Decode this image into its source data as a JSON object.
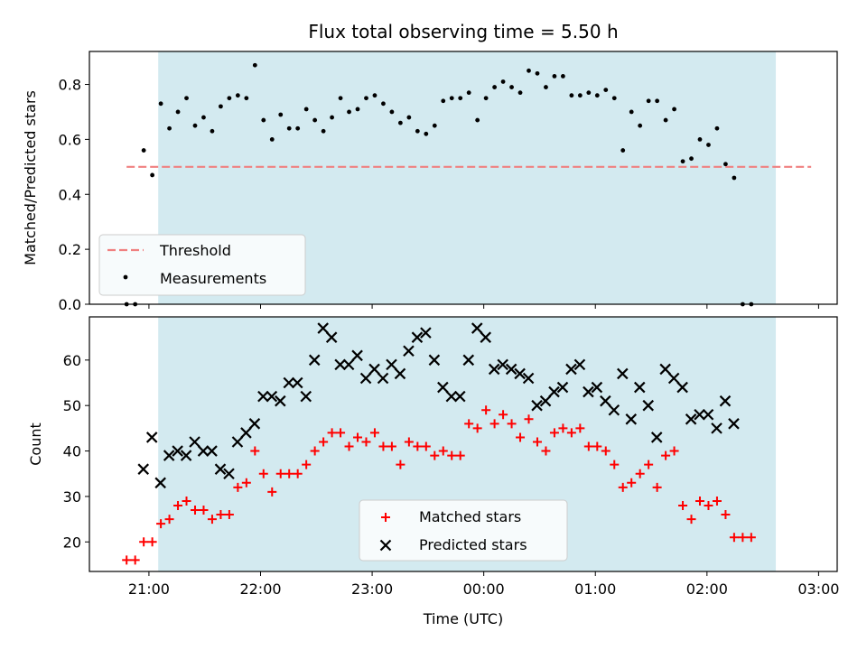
{
  "colors": {
    "observing_window": "#d3eaf0",
    "threshold": "#f08080",
    "measurements": "#000000",
    "matched": "#ff0000",
    "predicted": "#000000"
  },
  "chart_data": [
    {
      "type": "scatter",
      "title": "Flux total observing time = 5.50 h",
      "ylabel": "Matched/Predicted stars",
      "xlabel": "",
      "xlim": [
        "20:28",
        "03:10"
      ],
      "ylim": [
        0,
        0.92
      ],
      "yticks": [
        0.0,
        0.2,
        0.4,
        0.6,
        0.8
      ],
      "ytick_labels": [
        "0.0",
        "0.2",
        "0.4",
        "0.6",
        "0.8"
      ],
      "x_unit": "time (UTC)",
      "shaded_window": [
        "21:05",
        "02:37"
      ],
      "legend_position": "lower-left",
      "series": [
        {
          "name": "Threshold",
          "kind": "hline",
          "style": "dashed",
          "y": 0.5,
          "x_range": [
            "20:48",
            "02:56"
          ]
        },
        {
          "name": "Measurements",
          "kind": "dot",
          "x_start": "20:48",
          "x_step_min": 4.6,
          "values": [
            0.0,
            0.0,
            0.56,
            0.47,
            0.73,
            0.64,
            0.7,
            0.75,
            0.65,
            0.68,
            0.63,
            0.72,
            0.75,
            0.76,
            0.75,
            0.87,
            0.67,
            0.6,
            0.69,
            0.64,
            0.64,
            0.71,
            0.67,
            0.63,
            0.68,
            0.75,
            0.7,
            0.71,
            0.75,
            0.76,
            0.73,
            0.7,
            0.66,
            0.68,
            0.63,
            0.62,
            0.65,
            0.74,
            0.75,
            0.75,
            0.77,
            0.67,
            0.75,
            0.79,
            0.81,
            0.79,
            0.77,
            0.85,
            0.84,
            0.79,
            0.83,
            0.83,
            0.76,
            0.76,
            0.77,
            0.76,
            0.78,
            0.75,
            0.56,
            0.7,
            0.65,
            0.74,
            0.74,
            0.67,
            0.71,
            0.52,
            0.53,
            0.6,
            0.58,
            0.64,
            0.51,
            0.46,
            0.0,
            0.0
          ]
        }
      ]
    },
    {
      "type": "scatter",
      "title": "",
      "ylabel": "Count",
      "xlabel": "Time (UTC)",
      "xlim": [
        "20:28",
        "03:10"
      ],
      "ylim": [
        13.5,
        69.5
      ],
      "yticks": [
        20,
        30,
        40,
        50,
        60
      ],
      "ytick_labels": [
        "20",
        "30",
        "40",
        "50",
        "60"
      ],
      "xtick_labels": [
        "21:00",
        "22:00",
        "23:00",
        "00:00",
        "01:00",
        "02:00",
        "03:00"
      ],
      "x_unit": "time (UTC)",
      "shaded_window": [
        "21:05",
        "02:37"
      ],
      "legend_position": "lower-center",
      "series": [
        {
          "name": "Matched stars",
          "kind": "plus",
          "x_start": "20:48",
          "x_step_min": 4.6,
          "values": [
            16,
            16,
            20,
            20,
            24,
            25,
            28,
            29,
            27,
            27,
            25,
            26,
            26,
            32,
            33,
            40,
            35,
            31,
            35,
            35,
            35,
            37,
            40,
            42,
            44,
            44,
            41,
            43,
            42,
            44,
            41,
            41,
            37,
            42,
            41,
            41,
            39,
            40,
            39,
            39,
            46,
            45,
            49,
            46,
            48,
            46,
            43,
            47,
            42,
            40,
            44,
            45,
            44,
            45,
            41,
            41,
            40,
            37,
            32,
            33,
            35,
            37,
            32,
            39,
            40,
            28,
            25,
            29,
            28,
            29,
            26,
            21,
            21,
            21
          ]
        },
        {
          "name": "Predicted stars",
          "kind": "x",
          "x_start": "20:57",
          "x_step_min": 4.6,
          "values": [
            36,
            43,
            33,
            39,
            40,
            39,
            42,
            40,
            40,
            36,
            35,
            42,
            44,
            46,
            52,
            52,
            51,
            55,
            55,
            52,
            60,
            67,
            65,
            59,
            59,
            61,
            56,
            58,
            56,
            59,
            57,
            62,
            65,
            66,
            60,
            54,
            52,
            52,
            60,
            67,
            65,
            58,
            59,
            58,
            57,
            56,
            50,
            51,
            53,
            54,
            58,
            59,
            53,
            54,
            51,
            49,
            57,
            47,
            54,
            50,
            43,
            58,
            56,
            54,
            47,
            48,
            48,
            45,
            51,
            46
          ]
        }
      ]
    }
  ]
}
